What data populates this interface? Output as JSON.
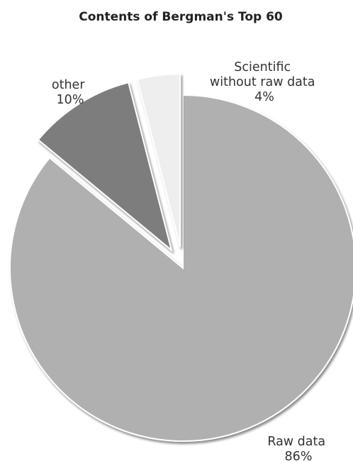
{
  "chart_data": {
    "type": "pie",
    "title": "Contents of Bergman's Top 60",
    "unit": "%",
    "legend": "none",
    "slices": [
      {
        "label_lines": [
          "Raw data"
        ],
        "value": 86,
        "value_text": "86%",
        "color": "#b0b0b0",
        "exploded": false
      },
      {
        "label_lines": [
          "other"
        ],
        "value": 10,
        "value_text": "10%",
        "color": "#7d7d7d",
        "exploded": true
      },
      {
        "label_lines": [
          "Scientific",
          "without raw data"
        ],
        "value": 4,
        "value_text": "4%",
        "color": "#eeeeee",
        "exploded": true
      }
    ]
  }
}
